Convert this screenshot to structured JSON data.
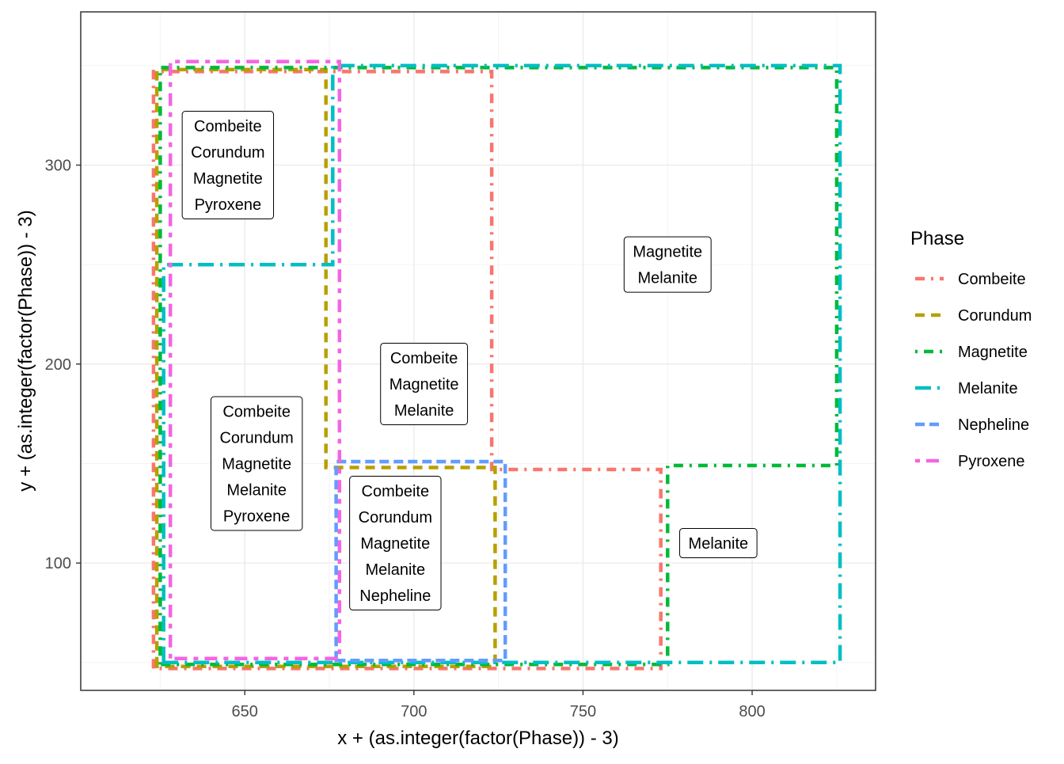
{
  "chart_data": {
    "type": "phase-region",
    "xlabel": "x + (as.integer(factor(Phase)) - 3)",
    "ylabel": "y + (as.integer(factor(Phase)) - 3)",
    "xlim": [
      601.5,
      836.5
    ],
    "ylim": [
      36,
      377
    ],
    "xticks": [
      650,
      700,
      750,
      800
    ],
    "yticks": [
      100,
      200,
      300
    ],
    "xtick_labels": [
      "650",
      "700",
      "750",
      "800"
    ],
    "ytick_labels": [
      "100",
      "200",
      "300"
    ],
    "grid": true,
    "legend": {
      "title": "Phase",
      "position": "right",
      "entries": [
        {
          "name": "Combeite",
          "color": "#F8766D"
        },
        {
          "name": "Corundum",
          "color": "#B79F00"
        },
        {
          "name": "Magnetite",
          "color": "#00BA38"
        },
        {
          "name": "Melanite",
          "color": "#00BFC4"
        },
        {
          "name": "Nepheline",
          "color": "#619CFF"
        },
        {
          "name": "Pyroxene",
          "color": "#F564E3"
        }
      ]
    },
    "series": [
      {
        "name": "Combeite",
        "color": "#F8766D",
        "polygons": [
          [
            [
              623,
              47
            ],
            [
              623,
              347
            ],
            [
              723,
              347
            ],
            [
              723,
              147
            ],
            [
              773,
              147
            ],
            [
              773,
              47
            ]
          ]
        ]
      },
      {
        "name": "Corundum",
        "color": "#B79F00",
        "polygons": [
          [
            [
              624,
              48
            ],
            [
              624,
              348
            ],
            [
              674,
              348
            ],
            [
              674,
              148
            ],
            [
              724,
              148
            ],
            [
              724,
              48
            ]
          ]
        ]
      },
      {
        "name": "Magnetite",
        "color": "#00BA38",
        "polygons": [
          [
            [
              625,
              49
            ],
            [
              625,
              349
            ],
            [
              825,
              349
            ],
            [
              825,
              149
            ],
            [
              775,
              149
            ],
            [
              775,
              49
            ]
          ]
        ]
      },
      {
        "name": "Melanite",
        "color": "#00BFC4",
        "polygons": [
          [
            [
              626,
              50
            ],
            [
              626,
              250
            ],
            [
              676,
              250
            ],
            [
              676,
              350
            ],
            [
              826,
              350
            ],
            [
              826,
              50
            ]
          ]
        ]
      },
      {
        "name": "Nepheline",
        "color": "#619CFF",
        "polygons": [
          [
            [
              677,
              51
            ],
            [
              677,
              151
            ],
            [
              727,
              151
            ],
            [
              727,
              51
            ]
          ]
        ]
      },
      {
        "name": "Pyroxene",
        "color": "#F564E3",
        "polygons": [
          [
            [
              628,
              52
            ],
            [
              628,
              352
            ],
            [
              678,
              352
            ],
            [
              678,
              52
            ]
          ]
        ]
      }
    ],
    "labels": [
      {
        "x": 645,
        "y": 300,
        "lines": [
          "Combeite",
          "Corundum",
          "Magnetite",
          "Pyroxene"
        ]
      },
      {
        "x": 653.5,
        "y": 150,
        "lines": [
          "Combeite",
          "Corundum",
          "Magnetite",
          "Melanite",
          "Pyroxene"
        ]
      },
      {
        "x": 703,
        "y": 190,
        "lines": [
          "Combeite",
          "Magnetite",
          "Melanite"
        ]
      },
      {
        "x": 694.5,
        "y": 110,
        "lines": [
          "Combeite",
          "Corundum",
          "Magnetite",
          "Melanite",
          "Nepheline"
        ]
      },
      {
        "x": 775,
        "y": 250,
        "lines": [
          "Magnetite",
          "Melanite"
        ]
      },
      {
        "x": 790,
        "y": 110,
        "lines": [
          "Melanite"
        ]
      }
    ]
  }
}
